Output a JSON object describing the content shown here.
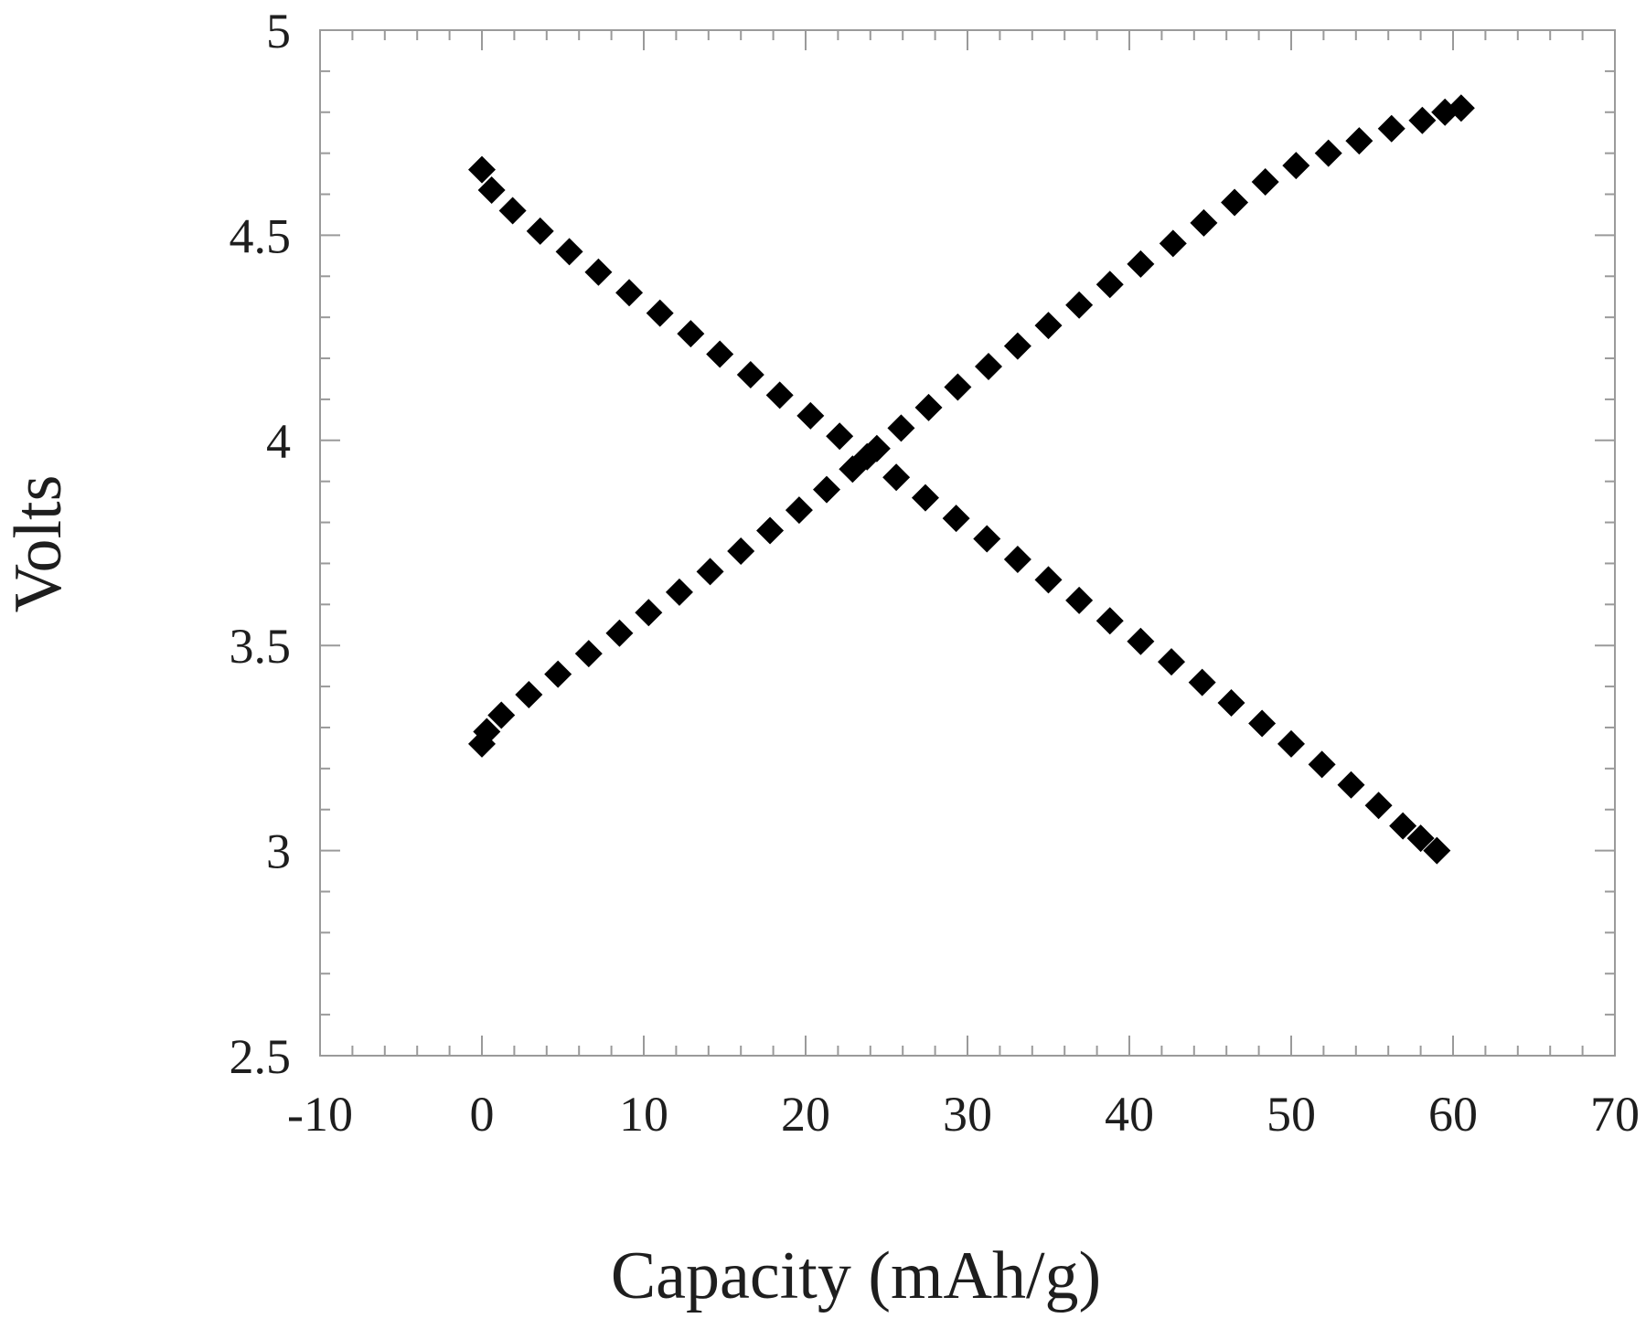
{
  "chart_data": {
    "type": "scatter",
    "title": "",
    "xlabel": "Capacity (mAh/g)",
    "ylabel": "Volts",
    "xlim": [
      -10,
      70
    ],
    "ylim": [
      2.5,
      5
    ],
    "xticks": [
      -10,
      0,
      10,
      20,
      30,
      40,
      50,
      60,
      70
    ],
    "yticks": [
      2.5,
      3,
      3.5,
      4,
      4.5,
      5
    ],
    "xtick_labels": [
      "-10",
      "0",
      "10",
      "20",
      "30",
      "40",
      "50",
      "60",
      "70"
    ],
    "ytick_labels": [
      "2.5",
      "3",
      "3.5",
      "4",
      "4.5",
      "5"
    ],
    "grid": false,
    "legend": "none",
    "marker": "diamond",
    "marker_color": "#000000",
    "series": [
      {
        "x": [
          0,
          0.6,
          1.9,
          3.6,
          5.4,
          7.2,
          9.1,
          11.0,
          12.9,
          14.7,
          16.6,
          18.4,
          20.3,
          22.1,
          23.8,
          25.6,
          27.4,
          29.3,
          31.2,
          33.1,
          35.0,
          36.9,
          38.8,
          40.7,
          42.6,
          44.5,
          46.3,
          48.2,
          50.0,
          51.9,
          53.7,
          55.4,
          56.9,
          58.0,
          59.0
        ],
        "y": [
          4.66,
          4.61,
          4.56,
          4.51,
          4.46,
          4.41,
          4.36,
          4.31,
          4.26,
          4.21,
          4.16,
          4.11,
          4.06,
          4.01,
          3.96,
          3.91,
          3.86,
          3.81,
          3.76,
          3.71,
          3.66,
          3.61,
          3.56,
          3.51,
          3.46,
          3.41,
          3.36,
          3.31,
          3.26,
          3.21,
          3.16,
          3.11,
          3.06,
          3.03,
          3.0
        ]
      },
      {
        "x": [
          0,
          0.3,
          1.2,
          2.9,
          4.7,
          6.6,
          8.5,
          10.3,
          12.2,
          14.1,
          16.0,
          17.8,
          19.6,
          21.3,
          22.9,
          24.4,
          25.9,
          27.6,
          29.4,
          31.3,
          33.1,
          35.0,
          36.9,
          38.8,
          40.7,
          42.7,
          44.6,
          46.5,
          48.4,
          50.3,
          52.3,
          54.2,
          56.2,
          58.1,
          59.5,
          60.5
        ],
        "y": [
          3.26,
          3.29,
          3.33,
          3.38,
          3.43,
          3.48,
          3.53,
          3.58,
          3.63,
          3.68,
          3.73,
          3.78,
          3.83,
          3.88,
          3.93,
          3.98,
          4.03,
          4.08,
          4.13,
          4.18,
          4.23,
          4.28,
          4.33,
          4.38,
          4.43,
          4.48,
          4.53,
          4.58,
          4.63,
          4.67,
          4.7,
          4.73,
          4.76,
          4.78,
          4.8,
          4.81
        ]
      }
    ]
  }
}
